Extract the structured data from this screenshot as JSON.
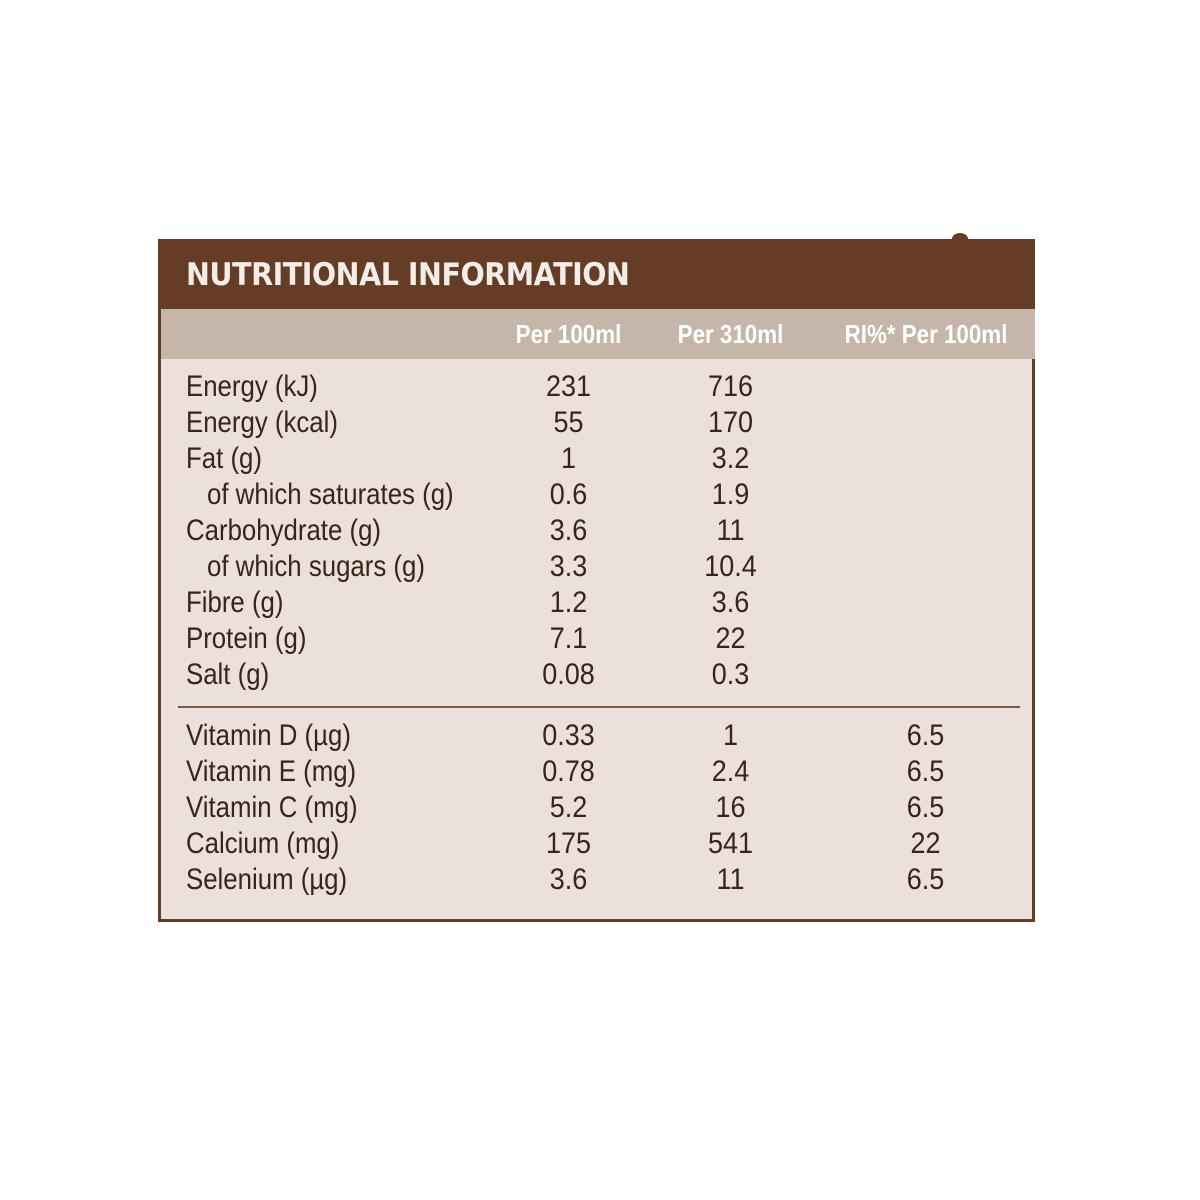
{
  "title": "NUTRITIONAL INFORMATION",
  "colors": {
    "brand_brown": "#643d24",
    "header_band": "#c6b5a9",
    "panel_background": "#ece0dc",
    "text": "#3a2318"
  },
  "columns": [
    "Per 100ml",
    "Per 310ml",
    "RI%* Per 100ml"
  ],
  "nutrients": [
    {
      "label": "Energy (kJ)",
      "per100": "231",
      "per310": "716",
      "ri": ""
    },
    {
      "label": "Energy (kcal)",
      "per100": "55",
      "per310": "170",
      "ri": ""
    },
    {
      "label": "Fat (g)",
      "per100": "1",
      "per310": "3.2",
      "ri": ""
    },
    {
      "label": "of which saturates (g)",
      "per100": "0.6",
      "per310": "1.9",
      "ri": ""
    },
    {
      "label": "Carbohydrate (g)",
      "per100": "3.6",
      "per310": "11",
      "ri": ""
    },
    {
      "label": "of which sugars (g)",
      "per100": "3.3",
      "per310": "10.4",
      "ri": ""
    },
    {
      "label": "Fibre (g)",
      "per100": "1.2",
      "per310": "3.6",
      "ri": ""
    },
    {
      "label": "Protein (g)",
      "per100": "7.1",
      "per310": "22",
      "ri": ""
    },
    {
      "label": "Salt (g)",
      "per100": "0.08",
      "per310": "0.3",
      "ri": ""
    }
  ],
  "vitamins": [
    {
      "label": "Vitamin D (µg)",
      "per100": "0.33",
      "per310": "1",
      "ri": "6.5"
    },
    {
      "label": "Vitamin E (mg)",
      "per100": "0.78",
      "per310": "2.4",
      "ri": "6.5"
    },
    {
      "label": "Vitamin C (mg)",
      "per100": "5.2",
      "per310": "16",
      "ri": "6.5"
    },
    {
      "label": "Calcium (mg)",
      "per100": "175",
      "per310": "541",
      "ri": "22"
    },
    {
      "label": "Selenium (µg)",
      "per100": "3.6",
      "per310": "11",
      "ri": "6.5"
    }
  ]
}
